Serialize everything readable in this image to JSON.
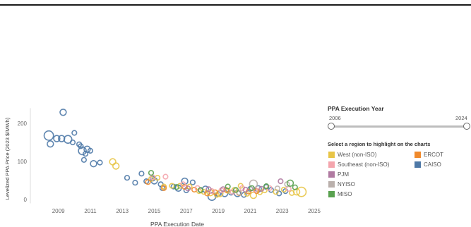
{
  "panel": {
    "title": "PPA Execution Year",
    "slider_min_label": "2006",
    "slider_max_label": "2024",
    "legend_title": "Select a region to highlight on the charts"
  },
  "legend": [
    {
      "label": "West (non-ISO)",
      "color": "#e8c547"
    },
    {
      "label": "ERCOT",
      "color": "#f08a2c"
    },
    {
      "label": "Southeast (non-ISO)",
      "color": "#f4a5ad"
    },
    {
      "label": "CAISO",
      "color": "#4e79a7"
    },
    {
      "label": "PJM",
      "color": "#b07aa1"
    },
    {
      "label": "NYISO",
      "color": "#bab0ac"
    },
    {
      "label": "MISO",
      "color": "#59a14f"
    }
  ],
  "chart_data": {
    "type": "scatter",
    "xlabel": "PPA Execution Date",
    "ylabel": "Levelized PPA Price (2023 $/MWh)",
    "xlim": [
      2008,
      2025
    ],
    "ylim": [
      -10,
      240
    ],
    "xticks": [
      2009,
      2011,
      2013,
      2015,
      2017,
      2019,
      2021,
      2023,
      2025
    ],
    "yticks": [
      0,
      100,
      200
    ],
    "grid": false,
    "series": [
      {
        "name": "CAISO",
        "points": [
          [
            2008.4,
            168,
            3
          ],
          [
            2008.5,
            146,
            2
          ],
          [
            2008.9,
            160,
            2
          ],
          [
            2009.2,
            160,
            2
          ],
          [
            2009.3,
            229,
            2
          ],
          [
            2009.6,
            158,
            2.5
          ],
          [
            2009.9,
            150,
            1.5
          ],
          [
            2010.0,
            175,
            1.5
          ],
          [
            2010.3,
            145,
            1.5
          ],
          [
            2010.4,
            140,
            1.5
          ],
          [
            2010.5,
            128,
            2.5
          ],
          [
            2010.6,
            104,
            1.5
          ],
          [
            2010.7,
            120,
            1.5
          ],
          [
            2010.8,
            132,
            2
          ],
          [
            2011.0,
            128,
            1.5
          ],
          [
            2011.2,
            94,
            2
          ],
          [
            2011.6,
            97,
            1.5
          ],
          [
            2013.3,
            57,
            1.5
          ],
          [
            2013.8,
            44,
            1.5
          ],
          [
            2014.2,
            68,
            1.5
          ],
          [
            2014.5,
            48,
            1.5
          ],
          [
            2014.9,
            55,
            1.5
          ],
          [
            2015.0,
            49,
            2
          ],
          [
            2015.4,
            40,
            1.5
          ],
          [
            2015.5,
            30,
            1.5
          ],
          [
            2016.2,
            34,
            1.5
          ],
          [
            2016.5,
            30,
            2
          ],
          [
            2016.9,
            48,
            2
          ],
          [
            2017.0,
            24,
            1.5
          ],
          [
            2017.4,
            45,
            1.5
          ],
          [
            2017.9,
            24,
            1.5
          ],
          [
            2018.2,
            27,
            2
          ],
          [
            2018.6,
            8,
            2.5
          ],
          [
            2019.0,
            14,
            1.5
          ],
          [
            2019.4,
            16,
            2
          ],
          [
            2019.8,
            18,
            1.5
          ],
          [
            2020.2,
            16,
            2
          ],
          [
            2020.6,
            12,
            1.5
          ],
          [
            2021.0,
            28,
            1.5
          ],
          [
            2021.5,
            28,
            2
          ],
          [
            2022.0,
            33,
            1.5
          ],
          [
            2022.3,
            25,
            1.5
          ],
          [
            2022.8,
            16,
            1.5
          ],
          [
            2023.2,
            22,
            1.5
          ]
        ]
      },
      {
        "name": "West (non-ISO)",
        "points": [
          [
            2012.4,
            99,
            2
          ],
          [
            2012.6,
            88,
            2
          ],
          [
            2014.8,
            54,
            1.5
          ],
          [
            2015.2,
            57,
            1.5
          ],
          [
            2015.6,
            34,
            1.5
          ],
          [
            2016.1,
            36,
            1.5
          ],
          [
            2016.6,
            36,
            1.5
          ],
          [
            2017.2,
            34,
            1.5
          ],
          [
            2017.8,
            22,
            1.5
          ],
          [
            2018.1,
            20,
            1.5
          ],
          [
            2018.5,
            18,
            2
          ],
          [
            2018.9,
            12,
            1.5
          ],
          [
            2019.1,
            16,
            2
          ],
          [
            2019.6,
            23,
            1.5
          ],
          [
            2020.0,
            25,
            1.5
          ],
          [
            2020.4,
            36,
            1.5
          ],
          [
            2020.8,
            15,
            1.5
          ],
          [
            2021.2,
            11,
            2
          ],
          [
            2021.6,
            19,
            1.5
          ],
          [
            2021.9,
            24,
            1.5
          ],
          [
            2022.6,
            20,
            1.5
          ],
          [
            2023.1,
            26,
            1.5
          ],
          [
            2023.6,
            17,
            1.5
          ],
          [
            2023.9,
            20,
            2
          ],
          [
            2024.2,
            20,
            3
          ]
        ]
      },
      {
        "name": "ERCOT",
        "points": [
          [
            2014.6,
            46,
            1.5
          ],
          [
            2015.6,
            30,
            1.5
          ],
          [
            2016.9,
            33,
            1.5
          ],
          [
            2017.5,
            26,
            1.5
          ],
          [
            2018.3,
            16,
            1.5
          ],
          [
            2018.8,
            19,
            1.5
          ],
          [
            2019.5,
            25,
            1.5
          ],
          [
            2020.3,
            17,
            1.5
          ],
          [
            2020.9,
            21,
            1.5
          ],
          [
            2021.4,
            22,
            1.5
          ]
        ]
      },
      {
        "name": "Southeast (non-ISO)",
        "points": [
          [
            2014.9,
            58,
            1.5
          ],
          [
            2015.7,
            60,
            1.5
          ],
          [
            2016.8,
            40,
            1.5
          ],
          [
            2017.7,
            30,
            1.5
          ],
          [
            2018.6,
            22,
            1.5
          ],
          [
            2019.2,
            24,
            1.5
          ],
          [
            2019.9,
            20,
            1.5
          ],
          [
            2020.5,
            30,
            1.5
          ],
          [
            2021.3,
            26,
            1.5
          ],
          [
            2022.2,
            30,
            1.5
          ],
          [
            2023.4,
            28,
            1.5
          ]
        ]
      },
      {
        "name": "PJM",
        "points": [
          [
            2017.1,
            29,
            1.5
          ],
          [
            2018.4,
            27,
            1.5
          ],
          [
            2019.3,
            27,
            1.5
          ],
          [
            2020.7,
            26,
            1.5
          ],
          [
            2021.7,
            28,
            1.5
          ],
          [
            2022.9,
            48,
            1.5
          ]
        ]
      },
      {
        "name": "NYISO",
        "points": [
          [
            2020.3,
            18,
            1.5
          ],
          [
            2021.2,
            41,
            2.5
          ],
          [
            2022.7,
            29,
            1.5
          ],
          [
            2023.3,
            40,
            1.5
          ]
        ]
      },
      {
        "name": "MISO",
        "points": [
          [
            2014.8,
            70,
            1.5
          ],
          [
            2016.4,
            33,
            1.5
          ],
          [
            2017.9,
            25,
            1.5
          ],
          [
            2019.6,
            34,
            1.5
          ],
          [
            2020.1,
            25,
            1.5
          ],
          [
            2021.1,
            30,
            1.5
          ],
          [
            2022.0,
            35,
            1.5
          ],
          [
            2023.5,
            43,
            2
          ],
          [
            2023.8,
            32,
            1.5
          ]
        ]
      }
    ]
  }
}
